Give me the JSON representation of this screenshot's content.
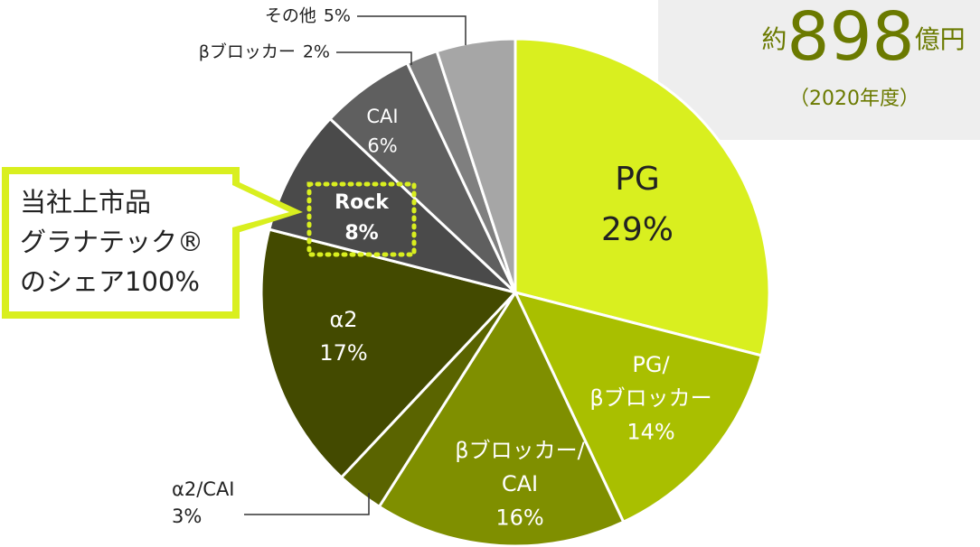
{
  "chart_data": {
    "type": "pie",
    "categories": [
      "PG",
      "PG/βブロッカー",
      "βブロッカー/CAI",
      "α2/CAI",
      "α2",
      "Rock",
      "CAI",
      "βブロッカー",
      "その他"
    ],
    "values": [
      29,
      14,
      16,
      3,
      17,
      8,
      6,
      2,
      5
    ],
    "value_labels": [
      "29%",
      "14%",
      "16%",
      "3%",
      "17%",
      "8%",
      "6%",
      "2%",
      "5%"
    ],
    "colors": [
      "#d9ef1f",
      "#a9bf00",
      "#7f8f00",
      "#5a6400",
      "#434a00",
      "#4a4a4a",
      "#5f5f5f",
      "#7f7f7f",
      "#a6a6a6"
    ],
    "annotations": {
      "total_prefix": "約",
      "total_number": "898",
      "total_unit": "億円",
      "year": "（2020年度）",
      "callout": [
        "当社上市品",
        "グラナテック®",
        "のシェア100%"
      ]
    }
  }
}
